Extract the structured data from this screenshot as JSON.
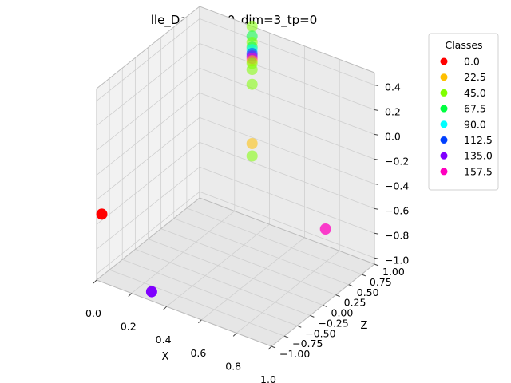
{
  "chart_data": {
    "type": "scatter",
    "projection": "3d",
    "title": "lle_Day_EO+0_dim=3_tp=0",
    "xlabel": "X",
    "ylabel": "",
    "zlabel": "Z",
    "x_ticks": [
      "0.0",
      "0.2",
      "0.4",
      "0.6",
      "0.8",
      "1.0"
    ],
    "z_ticks": [
      "−1.00",
      "−0.75",
      "−0.50",
      "−0.25",
      "0.00",
      "0.25",
      "0.50",
      "0.75",
      "1.00"
    ],
    "y_ticks": [
      "−1.0",
      "−0.8",
      "−0.6",
      "−0.4",
      "−0.2",
      "0.0",
      "0.2",
      "0.4"
    ],
    "xlim": [
      0,
      1
    ],
    "zlim": [
      -1,
      1
    ],
    "ylim": [
      -1.05,
      0.5
    ],
    "grid": true,
    "legend": {
      "title": "Classes",
      "placement": "right",
      "entries": [
        {
          "label": "0.0",
          "color": "#ff0000"
        },
        {
          "label": "22.5",
          "color": "#ffbf00"
        },
        {
          "label": "45.0",
          "color": "#80ff00"
        },
        {
          "label": "67.5",
          "color": "#00ff40"
        },
        {
          "label": "90.0",
          "color": "#00ffff"
        },
        {
          "label": "112.5",
          "color": "#0040ff"
        },
        {
          "label": "135.0",
          "color": "#8000ff"
        },
        {
          "label": "157.5",
          "color": "#ff00bf"
        }
      ]
    },
    "points": [
      {
        "x": 0.0,
        "z": -0.9,
        "y": -0.55,
        "class": "0.0"
      },
      {
        "x": 1.0,
        "z": 0.05,
        "y": -0.45,
        "class": "157.5"
      },
      {
        "x": 0.3,
        "z": -0.95,
        "y": -1.0,
        "class": "135.0"
      },
      {
        "x": 0.3,
        "z": 1.0,
        "y": 0.5,
        "class": "45.0"
      },
      {
        "x": 0.3,
        "z": 1.0,
        "y": 0.42,
        "class": "67.5"
      },
      {
        "x": 0.3,
        "z": 1.0,
        "y": 0.37,
        "class": "45.0"
      },
      {
        "x": 0.3,
        "z": 1.0,
        "y": 0.33,
        "class": "67.5"
      },
      {
        "x": 0.3,
        "z": 1.0,
        "y": 0.31,
        "class": "90.0"
      },
      {
        "x": 0.3,
        "z": 1.0,
        "y": 0.28,
        "class": "112.5"
      },
      {
        "x": 0.3,
        "z": 1.0,
        "y": 0.26,
        "class": "135.0"
      },
      {
        "x": 0.3,
        "z": 1.0,
        "y": 0.24,
        "class": "157.5"
      },
      {
        "x": 0.3,
        "z": 1.0,
        "y": 0.22,
        "class": "22.5"
      },
      {
        "x": 0.3,
        "z": 1.0,
        "y": 0.2,
        "class": "45.0"
      },
      {
        "x": 0.3,
        "z": 1.0,
        "y": 0.15,
        "class": "45.0"
      },
      {
        "x": 0.3,
        "z": 1.0,
        "y": 0.03,
        "class": "45.0"
      },
      {
        "x": 0.3,
        "z": 1.0,
        "y": -0.45,
        "class": "22.5"
      },
      {
        "x": 0.3,
        "z": 1.0,
        "y": -0.55,
        "class": "45.0"
      }
    ]
  }
}
